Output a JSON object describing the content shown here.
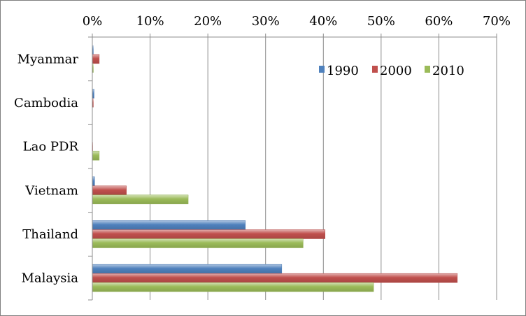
{
  "chart_data": {
    "type": "bar",
    "orientation": "horizontal",
    "categories": [
      "Myanmar",
      "Cambodia",
      "Lao PDR",
      "Vietnam",
      "Thailand",
      "Malaysia"
    ],
    "series": [
      {
        "name": "1990",
        "color": "#4f81bd",
        "values": [
          0.2,
          0.3,
          0.0,
          0.4,
          26.5,
          32.8
        ]
      },
      {
        "name": "2000",
        "color": "#c0504d",
        "values": [
          1.2,
          0.2,
          0.1,
          5.9,
          40.3,
          63.2
        ]
      },
      {
        "name": "2010",
        "color": "#9bbb59",
        "values": [
          0.2,
          0.0,
          1.2,
          16.6,
          36.5,
          48.7
        ]
      }
    ],
    "xlim": [
      0,
      70
    ],
    "xticks": [
      "0%",
      "10%",
      "20%",
      "30%",
      "40%",
      "50%",
      "60%",
      "70%"
    ],
    "xtick_values": [
      0,
      10,
      20,
      30,
      40,
      50,
      60,
      70
    ],
    "xaxis_position": "top",
    "grid": true,
    "legend_position": "top-right",
    "title": "",
    "xlabel": "",
    "ylabel": ""
  }
}
